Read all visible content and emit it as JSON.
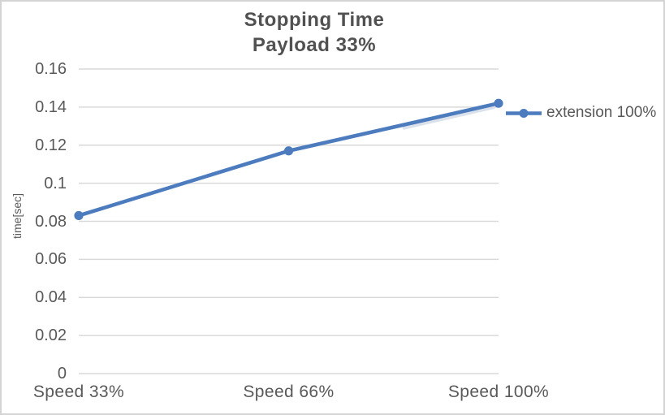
{
  "chart_data": {
    "type": "line",
    "title": "Stopping Time",
    "subtitle": "Payload 33%",
    "categories": [
      "Speed 33%",
      "Speed 66%",
      "Speed 100%"
    ],
    "series": [
      {
        "name": "extension 100%",
        "values": [
          0.083,
          0.117,
          0.142
        ],
        "color": "#4d7cbe",
        "marker": "circle"
      }
    ],
    "xlabel": "",
    "ylabel": "time[sec]",
    "ylim": [
      0,
      0.16
    ],
    "ytick_step": 0.02,
    "ytick_labels": [
      "0.16",
      "0.14",
      "0.12",
      "0.1",
      "0.08",
      "0.06",
      "0.04",
      "0.02",
      "0"
    ],
    "grid": "horizontal",
    "legend_position": "right",
    "colors": {
      "gridline": "#d9d9d9",
      "text": "#595959",
      "title": "#515151",
      "background": "#ffffff",
      "border": "#d4d4d4"
    }
  }
}
